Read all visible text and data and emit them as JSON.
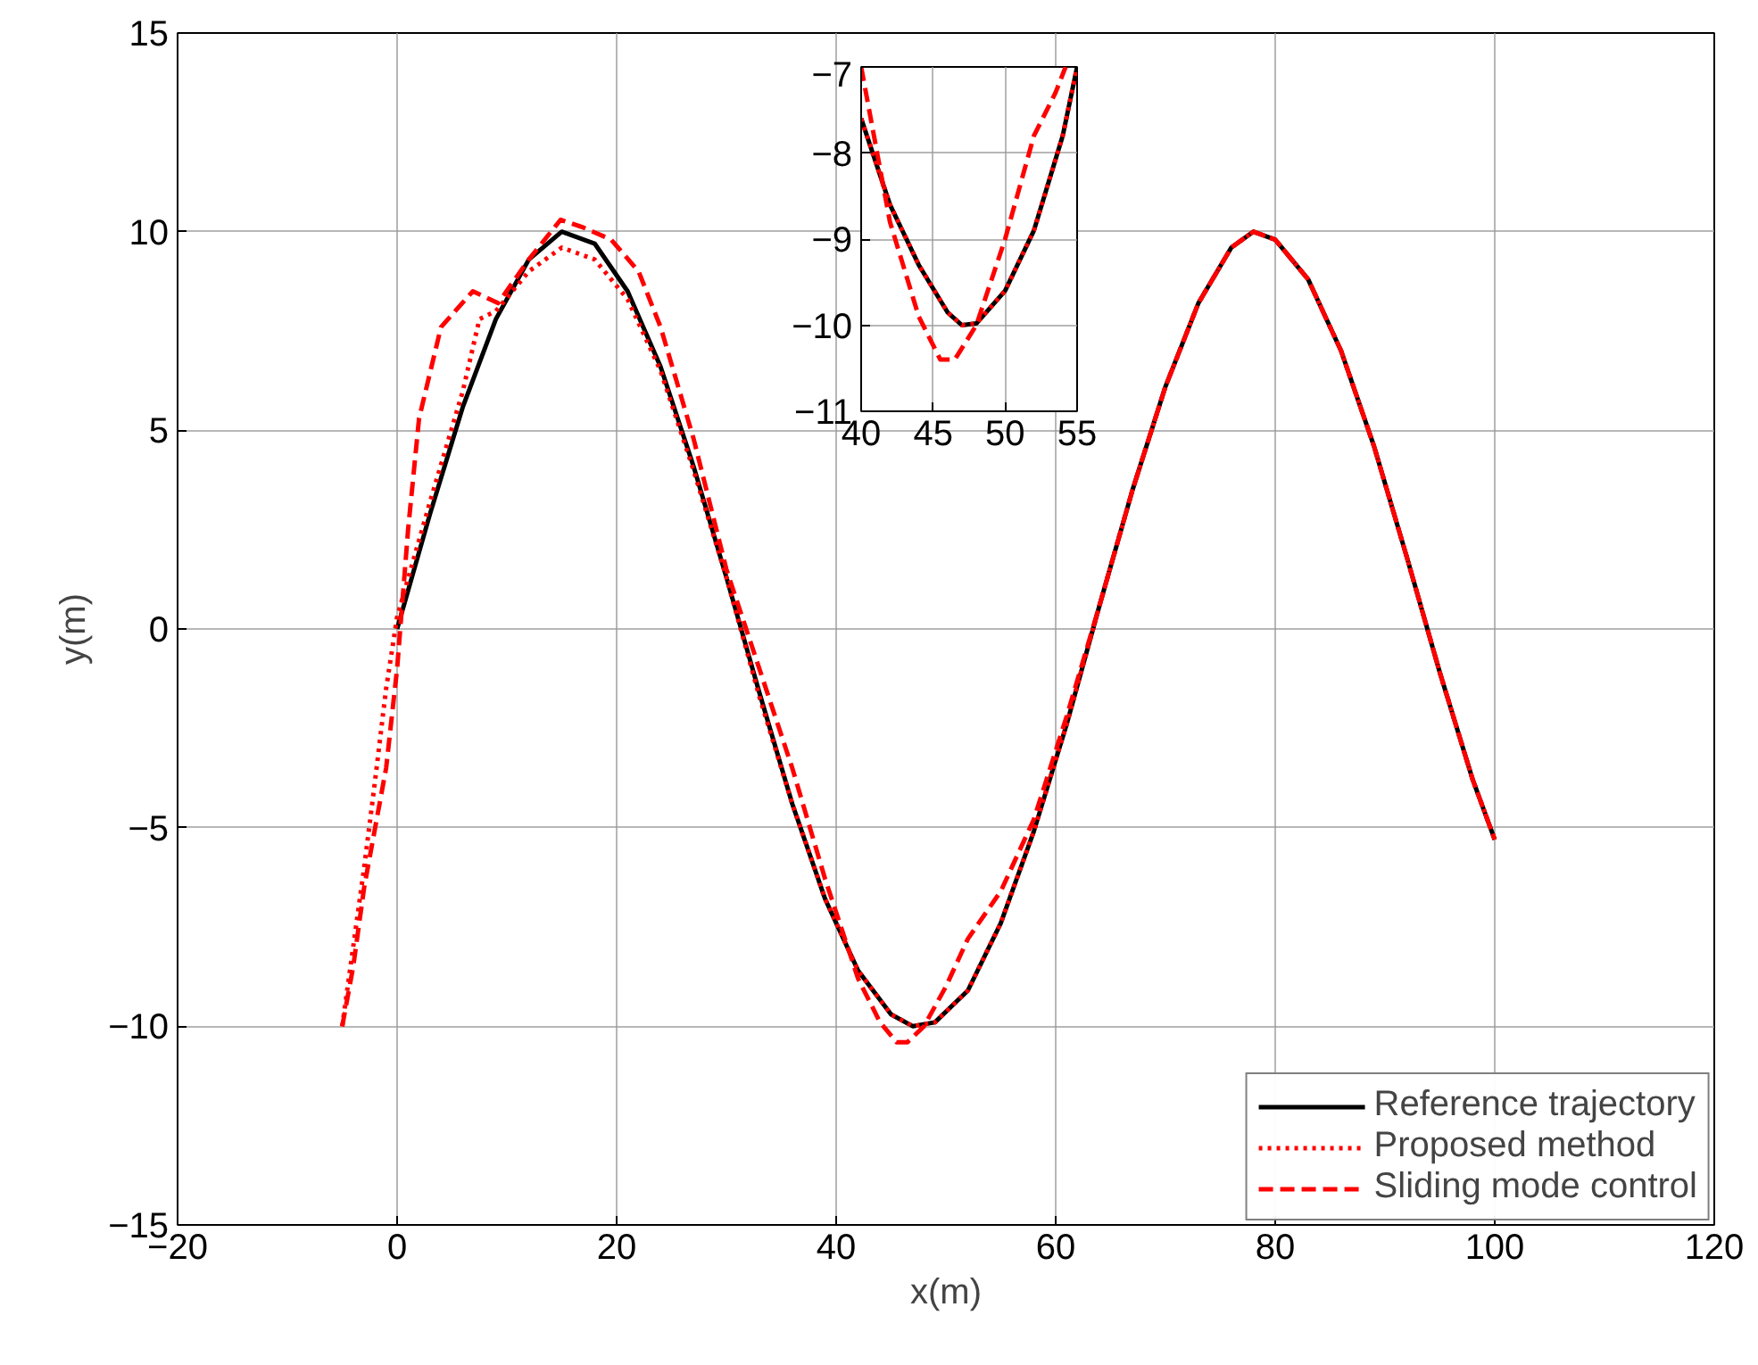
{
  "chart_data": [
    {
      "type": "line",
      "xlabel": "x(m)",
      "ylabel": "y(m)",
      "xlim": [
        -20,
        120
      ],
      "ylim": [
        -15,
        15
      ],
      "xticks": [
        -20,
        0,
        20,
        40,
        60,
        80,
        100,
        120
      ],
      "yticks": [
        -15,
        -10,
        -5,
        0,
        5,
        10,
        15
      ],
      "grid": true,
      "legend": "bottom right",
      "series": [
        {
          "name": "Reference trajectory",
          "color": "#000000",
          "line_style": "solid",
          "x": [
            0,
            3,
            6,
            9,
            12,
            15,
            18,
            21,
            24,
            27,
            30,
            33,
            36,
            39,
            42,
            45,
            47,
            49,
            52,
            55,
            58,
            61,
            64,
            67,
            70,
            73,
            76,
            78,
            80,
            83,
            86,
            89,
            92,
            95,
            98,
            100
          ],
          "values": [
            0,
            2.9,
            5.6,
            7.8,
            9.3,
            10.0,
            9.7,
            8.5,
            6.6,
            4.1,
            1.3,
            -1.6,
            -4.4,
            -6.8,
            -8.6,
            -9.7,
            -10.0,
            -9.9,
            -9.1,
            -7.4,
            -5.1,
            -2.4,
            0.6,
            3.5,
            6.1,
            8.2,
            9.6,
            10.0,
            9.8,
            8.8,
            7.0,
            4.6,
            1.8,
            -1.1,
            -3.8,
            -5.3
          ]
        },
        {
          "name": "Proposed method",
          "color": "#ff0000",
          "line_style": "dotted",
          "x": [
            -5,
            -4,
            -3,
            -2,
            -1,
            0,
            3,
            6,
            7.5,
            9,
            12,
            15,
            18,
            21,
            24,
            27,
            30,
            33,
            36,
            39,
            42,
            45,
            47,
            49,
            52,
            55,
            58,
            61,
            64,
            67,
            70,
            73,
            76,
            78,
            80,
            83,
            86,
            89,
            92,
            95,
            98,
            100
          ],
          "values": [
            -10,
            -8,
            -6,
            -3.8,
            -1.5,
            0.3,
            3.2,
            6.0,
            7.8,
            8.0,
            9.0,
            9.6,
            9.3,
            8.3,
            6.5,
            4.0,
            1.3,
            -1.7,
            -4.4,
            -6.8,
            -8.6,
            -9.7,
            -10.0,
            -9.9,
            -9.1,
            -7.4,
            -5.1,
            -2.4,
            0.6,
            3.5,
            6.1,
            8.2,
            9.6,
            10.0,
            9.8,
            8.8,
            7.0,
            4.6,
            1.8,
            -1.1,
            -3.8,
            -5.3
          ]
        },
        {
          "name": "Sliding mode control",
          "color": "#ff0000",
          "line_style": "dashed",
          "x": [
            -5,
            -4,
            -3,
            -2,
            -1,
            0,
            1,
            2,
            4,
            6.9,
            9.2,
            12,
            14.9,
            17,
            19.5,
            22,
            24,
            27,
            30,
            33,
            36,
            39,
            42,
            44,
            45.5,
            46.5,
            48,
            50,
            52,
            55,
            58,
            61,
            64,
            67,
            70,
            73,
            76,
            78,
            80,
            83,
            86,
            89,
            92,
            95,
            98,
            100
          ],
          "values": [
            -10,
            -8.5,
            -6.5,
            -5.0,
            -3.5,
            -1.0,
            2.5,
            5.3,
            7.6,
            8.5,
            8.2,
            9.3,
            10.3,
            10.1,
            9.8,
            9.0,
            7.6,
            4.8,
            1.5,
            -1.0,
            -3.5,
            -6.3,
            -8.8,
            -9.9,
            -10.4,
            -10.4,
            -10.0,
            -9.0,
            -7.8,
            -6.6,
            -4.8,
            -2.2,
            0.6,
            3.5,
            6.1,
            8.2,
            9.6,
            10.0,
            9.8,
            8.8,
            7.0,
            4.6,
            1.8,
            -1.1,
            -3.8,
            -5.3
          ]
        }
      ]
    },
    {
      "type": "line",
      "xlim": [
        40,
        55
      ],
      "ylim": [
        -11,
        -7
      ],
      "xticks": [
        40,
        45,
        50,
        55
      ],
      "yticks": [
        -11,
        -10,
        -9,
        -8,
        -7
      ],
      "grid": true,
      "series": [
        {
          "color": "#000000",
          "line_style": "solid",
          "x": [
            40,
            42,
            44,
            46,
            47,
            48,
            50,
            52,
            54,
            55
          ],
          "values": [
            -7.6,
            -8.6,
            -9.3,
            -9.85,
            -10.0,
            -9.98,
            -9.6,
            -8.9,
            -7.8,
            -7.0
          ]
        },
        {
          "color": "#ff0000",
          "line_style": "dotted",
          "x": [
            40,
            42,
            44,
            46,
            47,
            48,
            50,
            52,
            54,
            55
          ],
          "values": [
            -7.6,
            -8.6,
            -9.3,
            -9.85,
            -10.0,
            -9.98,
            -9.6,
            -8.9,
            -7.8,
            -7.0
          ]
        },
        {
          "color": "#ff0000",
          "line_style": "dashed",
          "x": [
            40,
            42,
            44,
            45.5,
            46.5,
            48,
            50,
            51.5,
            52,
            53.5,
            54.2
          ],
          "values": [
            -7.0,
            -8.8,
            -9.9,
            -10.4,
            -10.4,
            -10.0,
            -9.0,
            -8.1,
            -7.8,
            -7.3,
            -7.0
          ]
        }
      ]
    }
  ]
}
